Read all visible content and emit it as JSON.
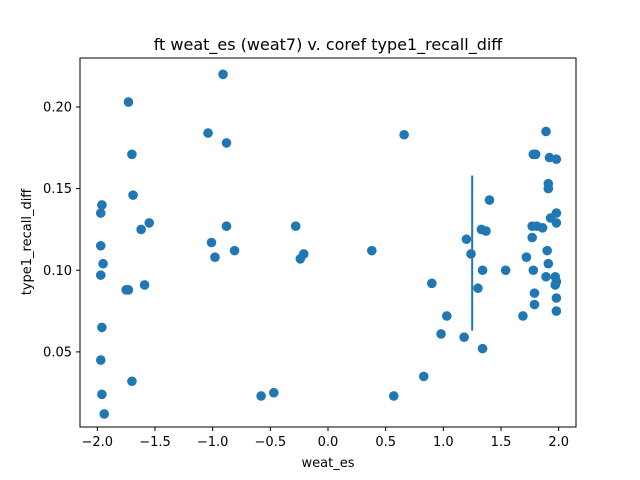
{
  "chart_data": {
    "type": "scatter",
    "title": "ft weat_es (weat7) v. coref type1_recall_diff",
    "xlabel": "weat_es",
    "ylabel": "type1_recall_diff",
    "xlim": [
      -2.15,
      2.15
    ],
    "ylim": [
      0.004,
      0.23
    ],
    "xticks": [
      -2.0,
      -1.5,
      -1.0,
      -0.5,
      0.0,
      0.5,
      1.0,
      1.5,
      2.0
    ],
    "xtick_labels": [
      "−2.0",
      "−1.5",
      "−1.0",
      "−0.5",
      "0.0",
      "0.5",
      "1.0",
      "1.5",
      "2.0"
    ],
    "yticks": [
      0.05,
      0.1,
      0.15,
      0.2
    ],
    "ytick_labels": [
      "0.05",
      "0.10",
      "0.15",
      "0.20"
    ],
    "grid": false,
    "point_color": "#1f77b4",
    "vline": {
      "x": 1.25,
      "y_from": 0.063,
      "y_to": 0.158,
      "color": "#1f77b4"
    },
    "points": [
      [
        -1.97,
        0.135
      ],
      [
        -1.96,
        0.14
      ],
      [
        -1.97,
        0.115
      ],
      [
        -1.95,
        0.104
      ],
      [
        -1.97,
        0.097
      ],
      [
        -1.96,
        0.065
      ],
      [
        -1.97,
        0.045
      ],
      [
        -1.96,
        0.024
      ],
      [
        -1.94,
        0.012
      ],
      [
        -1.73,
        0.203
      ],
      [
        -1.7,
        0.171
      ],
      [
        -1.69,
        0.146
      ],
      [
        -1.62,
        0.125
      ],
      [
        -1.55,
        0.129
      ],
      [
        -1.75,
        0.088
      ],
      [
        -1.73,
        0.088
      ],
      [
        -1.59,
        0.091
      ],
      [
        -1.7,
        0.032
      ],
      [
        -0.91,
        0.22
      ],
      [
        -1.04,
        0.184
      ],
      [
        -0.88,
        0.178
      ],
      [
        -0.88,
        0.127
      ],
      [
        -1.01,
        0.117
      ],
      [
        -0.98,
        0.108
      ],
      [
        -0.81,
        0.112
      ],
      [
        -0.28,
        0.127
      ],
      [
        -0.21,
        0.11
      ],
      [
        -0.24,
        0.107
      ],
      [
        -0.58,
        0.023
      ],
      [
        -0.47,
        0.025
      ],
      [
        0.66,
        0.183
      ],
      [
        0.38,
        0.112
      ],
      [
        0.57,
        0.023
      ],
      [
        0.83,
        0.035
      ],
      [
        0.9,
        0.092
      ],
      [
        1.03,
        0.072
      ],
      [
        0.98,
        0.061
      ],
      [
        1.18,
        0.059
      ],
      [
        1.2,
        0.119
      ],
      [
        1.24,
        0.11
      ],
      [
        1.3,
        0.089
      ],
      [
        1.33,
        0.125
      ],
      [
        1.37,
        0.124
      ],
      [
        1.34,
        0.1
      ],
      [
        1.4,
        0.143
      ],
      [
        1.34,
        0.052
      ],
      [
        1.54,
        0.1
      ],
      [
        1.89,
        0.185
      ],
      [
        1.78,
        0.171
      ],
      [
        1.8,
        0.171
      ],
      [
        1.92,
        0.169
      ],
      [
        1.98,
        0.168
      ],
      [
        1.91,
        0.153
      ],
      [
        1.91,
        0.15
      ],
      [
        1.98,
        0.135
      ],
      [
        1.93,
        0.132
      ],
      [
        1.98,
        0.129
      ],
      [
        1.77,
        0.127
      ],
      [
        1.81,
        0.127
      ],
      [
        1.86,
        0.126
      ],
      [
        1.77,
        0.12
      ],
      [
        1.9,
        0.112
      ],
      [
        1.72,
        0.108
      ],
      [
        1.91,
        0.104
      ],
      [
        1.78,
        0.1
      ],
      [
        1.89,
        0.096
      ],
      [
        1.97,
        0.096
      ],
      [
        1.98,
        0.093
      ],
      [
        1.97,
        0.091
      ],
      [
        1.79,
        0.086
      ],
      [
        1.98,
        0.083
      ],
      [
        1.79,
        0.079
      ],
      [
        1.98,
        0.075
      ],
      [
        1.69,
        0.072
      ]
    ]
  }
}
